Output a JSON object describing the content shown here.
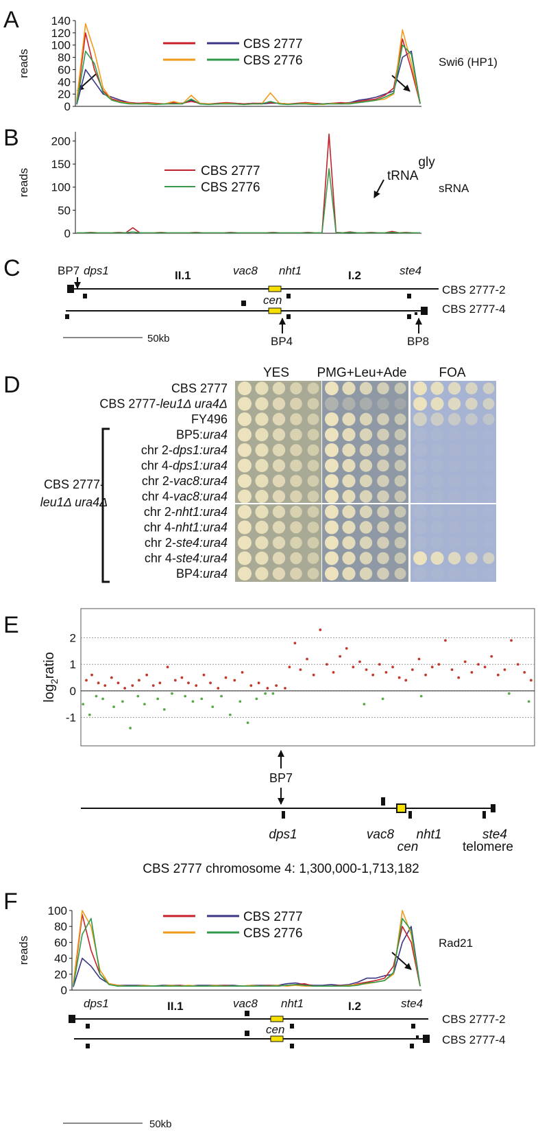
{
  "chart_data": [
    {
      "panel": "A",
      "type": "line",
      "ylabel": "reads",
      "ylim": [
        0,
        140
      ],
      "yticks": [
        0,
        20,
        40,
        60,
        80,
        100,
        120,
        140
      ],
      "grid": false,
      "track": "Swi6 (HP1)",
      "legend": [
        {
          "label": "CBS 2777",
          "colors": [
            "#c8202a",
            "#3a3484"
          ]
        },
        {
          "label": "CBS 2776",
          "colors": [
            "#f29a1c",
            "#2e9a4a"
          ]
        }
      ],
      "series": [
        {
          "color": "#3a3484",
          "values": [
            3,
            60,
            40,
            20,
            15,
            10,
            6,
            5,
            5,
            4,
            4,
            5,
            5,
            10,
            4,
            4,
            4,
            5,
            5,
            4,
            5,
            4,
            5,
            5,
            4,
            4,
            6,
            4,
            4,
            5,
            5,
            6,
            10,
            12,
            15,
            20,
            25,
            80,
            90,
            4
          ]
        },
        {
          "color": "#c8202a",
          "values": [
            5,
            120,
            60,
            25,
            12,
            8,
            6,
            5,
            6,
            5,
            4,
            6,
            5,
            8,
            5,
            4,
            5,
            6,
            5,
            4,
            5,
            5,
            6,
            5,
            4,
            5,
            6,
            5,
            4,
            5,
            6,
            5,
            8,
            10,
            12,
            18,
            30,
            110,
            60,
            5
          ]
        },
        {
          "color": "#f29a1c",
          "values": [
            10,
            135,
            90,
            30,
            10,
            7,
            5,
            4,
            5,
            4,
            4,
            8,
            4,
            18,
            5,
            4,
            4,
            5,
            4,
            3,
            4,
            4,
            22,
            5,
            4,
            4,
            5,
            4,
            3,
            5,
            4,
            5,
            6,
            8,
            10,
            12,
            20,
            125,
            70,
            6
          ]
        },
        {
          "color": "#2e9a4a",
          "values": [
            4,
            90,
            70,
            22,
            10,
            6,
            4,
            4,
            4,
            3,
            4,
            4,
            4,
            12,
            4,
            3,
            4,
            4,
            4,
            3,
            4,
            4,
            8,
            4,
            3,
            4,
            4,
            3,
            4,
            4,
            4,
            4,
            6,
            8,
            10,
            15,
            22,
            100,
            85,
            5
          ]
        }
      ]
    },
    {
      "panel": "B",
      "type": "line",
      "ylabel": "reads",
      "ylim": [
        0,
        220
      ],
      "yticks": [
        0,
        50,
        100,
        150,
        200
      ],
      "grid": false,
      "track": "sRNA",
      "marker": {
        "text": "tRNA",
        "sup": "gly"
      },
      "series": [
        {
          "name": "CBS 2777",
          "color": "#c0202a",
          "values": [
            1,
            1,
            2,
            1,
            1,
            1,
            2,
            1,
            12,
            1,
            1,
            1,
            2,
            1,
            1,
            1,
            1,
            2,
            1,
            1,
            1,
            1,
            2,
            1,
            1,
            1,
            1,
            1,
            2,
            1,
            1,
            1,
            1,
            2,
            1,
            1,
            215,
            2,
            1,
            3,
            1,
            1,
            2,
            1,
            1,
            4,
            1,
            2,
            1,
            1
          ]
        },
        {
          "name": "CBS 2776",
          "color": "#3a9a4a",
          "values": [
            1,
            1,
            1,
            1,
            1,
            1,
            1,
            1,
            3,
            1,
            1,
            1,
            1,
            1,
            1,
            1,
            1,
            1,
            1,
            1,
            1,
            1,
            1,
            1,
            1,
            1,
            1,
            1,
            1,
            1,
            1,
            1,
            1,
            1,
            1,
            1,
            140,
            1,
            1,
            2,
            1,
            1,
            1,
            1,
            1,
            2,
            1,
            1,
            1,
            1
          ]
        }
      ]
    },
    {
      "panel": "E",
      "type": "scatter",
      "ylabel": {
        "base": "log",
        "sub": "2",
        "rest": "ratio"
      },
      "xlim": [
        1300000,
        1713182
      ],
      "ylim": [
        -2.07,
        3.1
      ],
      "yticks": [
        2,
        1,
        0,
        -1
      ],
      "grid": true,
      "series": [
        {
          "color": "#c0392b",
          "x": [
            1305000,
            1310000,
            1316000,
            1322000,
            1328000,
            1334000,
            1340000,
            1347000,
            1353000,
            1360000,
            1366000,
            1372000,
            1379000,
            1386000,
            1392000,
            1398000,
            1405000,
            1412000,
            1418000,
            1425000,
            1432000,
            1440000,
            1447000,
            1455000,
            1462000,
            1470000,
            1478000,
            1486000,
            1490000,
            1495000,
            1500000,
            1506000,
            1512000,
            1518000,
            1524000,
            1530000,
            1536000,
            1542000,
            1548000,
            1554000,
            1560000,
            1566000,
            1572000,
            1578000,
            1584000,
            1590000,
            1596000,
            1602000,
            1608000,
            1614000,
            1620000,
            1626000,
            1632000,
            1638000,
            1644000,
            1650000,
            1656000,
            1662000,
            1668000,
            1674000,
            1680000,
            1686000,
            1692000,
            1698000,
            1704000,
            1710000
          ],
          "values": [
            0.4,
            0.6,
            0.3,
            0.2,
            0.5,
            0.3,
            0.1,
            0.2,
            0.4,
            0.6,
            0.2,
            0.3,
            0.9,
            0.4,
            0.5,
            0.3,
            0.2,
            0.6,
            0.3,
            0.1,
            0.5,
            0.4,
            0.7,
            0.2,
            0.3,
            0.1,
            0.2,
            0.1,
            0.9,
            1.8,
            0.8,
            1.2,
            0.6,
            2.3,
            1.0,
            0.7,
            1.3,
            1.6,
            0.9,
            1.1,
            0.8,
            0.6,
            1.0,
            0.7,
            0.9,
            0.5,
            0.4,
            0.8,
            1.2,
            0.6,
            0.9,
            1.0,
            1.9,
            0.8,
            0.5,
            1.1,
            0.7,
            1.0,
            0.9,
            1.3,
            0.6,
            0.8,
            1.9,
            1.0,
            0.7,
            0.4
          ]
        },
        {
          "color": "#5aaa4a",
          "x": [
            1302000,
            1308000,
            1314000,
            1320000,
            1330000,
            1338000,
            1345000,
            1352000,
            1358000,
            1370000,
            1376000,
            1383000,
            1395000,
            1402000,
            1410000,
            1420000,
            1428000,
            1436000,
            1445000,
            1452000,
            1460000,
            1468000,
            1475000,
            1558000,
            1575000,
            1610000,
            1690000,
            1708000
          ],
          "values": [
            -0.5,
            -0.9,
            -0.2,
            -0.3,
            -0.6,
            -0.4,
            -1.4,
            -0.2,
            -0.5,
            -0.3,
            -0.7,
            -0.1,
            -0.2,
            -0.4,
            -0.3,
            -0.6,
            -0.2,
            -0.9,
            -0.4,
            -1.2,
            -0.3,
            -0.1,
            -0.1,
            -0.5,
            -0.3,
            -0.2,
            -0.1,
            -0.4
          ]
        }
      ]
    },
    {
      "panel": "F",
      "type": "line",
      "ylabel": "reads",
      "ylim": [
        0,
        100
      ],
      "yticks": [
        0,
        20,
        40,
        60,
        80,
        100
      ],
      "grid": false,
      "track": "Rad21",
      "legend": [
        {
          "label": "CBS 2777",
          "colors": [
            "#c8202a",
            "#3a3484"
          ]
        },
        {
          "label": "CBS 2776",
          "colors": [
            "#f29a1c",
            "#2e9a4a"
          ]
        }
      ],
      "series": [
        {
          "color": "#3a3484",
          "values": [
            4,
            40,
            30,
            15,
            8,
            6,
            6,
            6,
            6,
            5,
            6,
            6,
            6,
            5,
            6,
            6,
            6,
            6,
            6,
            5,
            6,
            6,
            6,
            6,
            8,
            9,
            7,
            6,
            6,
            7,
            6,
            7,
            10,
            15,
            15,
            18,
            20,
            60,
            80,
            5
          ]
        },
        {
          "color": "#c8202a",
          "values": [
            5,
            95,
            50,
            20,
            8,
            6,
            5,
            5,
            5,
            5,
            5,
            5,
            6,
            5,
            5,
            5,
            5,
            6,
            5,
            5,
            5,
            5,
            6,
            5,
            6,
            7,
            8,
            5,
            5,
            5,
            6,
            5,
            8,
            10,
            12,
            15,
            30,
            80,
            60,
            5
          ]
        },
        {
          "color": "#f29a1c",
          "values": [
            8,
            100,
            80,
            25,
            8,
            6,
            5,
            5,
            6,
            5,
            5,
            6,
            5,
            6,
            5,
            5,
            6,
            5,
            5,
            5,
            6,
            5,
            5,
            6,
            5,
            6,
            5,
            5,
            5,
            5,
            5,
            6,
            7,
            8,
            10,
            12,
            20,
            100,
            70,
            6
          ]
        },
        {
          "color": "#2e9a4a",
          "values": [
            5,
            70,
            90,
            20,
            7,
            5,
            5,
            5,
            5,
            5,
            5,
            5,
            5,
            5,
            5,
            5,
            5,
            5,
            5,
            5,
            5,
            5,
            5,
            5,
            6,
            7,
            6,
            5,
            5,
            5,
            5,
            5,
            6,
            9,
            10,
            12,
            22,
            90,
            75,
            5
          ]
        }
      ]
    }
  ],
  "diagram_C": {
    "panel": "C",
    "bp7": "BP7",
    "dps1": "dps1",
    "ii1": "II.1",
    "vac8": "vac8",
    "nht1": "nht1",
    "i2": "I.2",
    "ste4": "ste4",
    "chr2": "CBS 2777-2",
    "cen": "cen",
    "chr4": "CBS 2777-4",
    "bp4": "BP4",
    "bp8": "BP8",
    "scale": "50kb"
  },
  "plates": {
    "panel": "D",
    "media": [
      "YES",
      "PMG+Leu+Ade",
      "FOA"
    ],
    "strains": [
      [
        {
          "text": "CBS 2777"
        }
      ],
      [
        {
          "text": "CBS 2777-"
        },
        {
          "text": "leu1Δ ura4Δ",
          "italic": true
        }
      ],
      [
        {
          "text": "FY496"
        }
      ],
      [
        {
          "text": "BP5:"
        },
        {
          "text": "ura4",
          "italic": true
        }
      ],
      [
        {
          "text": "chr 2-"
        },
        {
          "text": "dps1:ura4",
          "italic": true
        }
      ],
      [
        {
          "text": "chr 4-"
        },
        {
          "text": "dps1:ura4",
          "italic": true
        }
      ],
      [
        {
          "text": "chr 2-"
        },
        {
          "text": "vac8:ura4",
          "italic": true
        }
      ],
      [
        {
          "text": "chr 4-"
        },
        {
          "text": "vac8:ura4",
          "italic": true
        }
      ],
      [
        {
          "text": "chr 2-"
        },
        {
          "text": "nht1:ura4",
          "italic": true
        }
      ],
      [
        {
          "text": "chr 4-"
        },
        {
          "text": "nht1:ura4",
          "italic": true
        }
      ],
      [
        {
          "text": "chr 2-"
        },
        {
          "text": "ste4:ura4",
          "italic": true
        }
      ],
      [
        {
          "text": "chr 4-"
        },
        {
          "text": "ste4:ura4",
          "italic": true
        }
      ],
      [
        {
          "text": "BP4:"
        },
        {
          "text": "ura4",
          "italic": true
        }
      ]
    ],
    "group": [
      "CBS 2777-",
      "leu1Δ ura4Δ"
    ]
  },
  "diagram_E": {
    "bp7": "BP7",
    "dps1": "dps1",
    "vac8": "vac8",
    "cen": "cen",
    "nht1": "nht1",
    "ste4": "ste4",
    "telomere": "telomere",
    "caption": "CBS 2777 chromosome 4: 1,300,000-1,713,182"
  },
  "diagram_F": {
    "dps1": "dps1",
    "ii1": "II.1",
    "vac8": "vac8",
    "nht1": "nht1",
    "i2": "I.2",
    "ste4": "ste4",
    "chr2": "CBS 2777-2",
    "cen": "cen",
    "chr4": "CBS 2777-4",
    "scale": "50kb"
  }
}
